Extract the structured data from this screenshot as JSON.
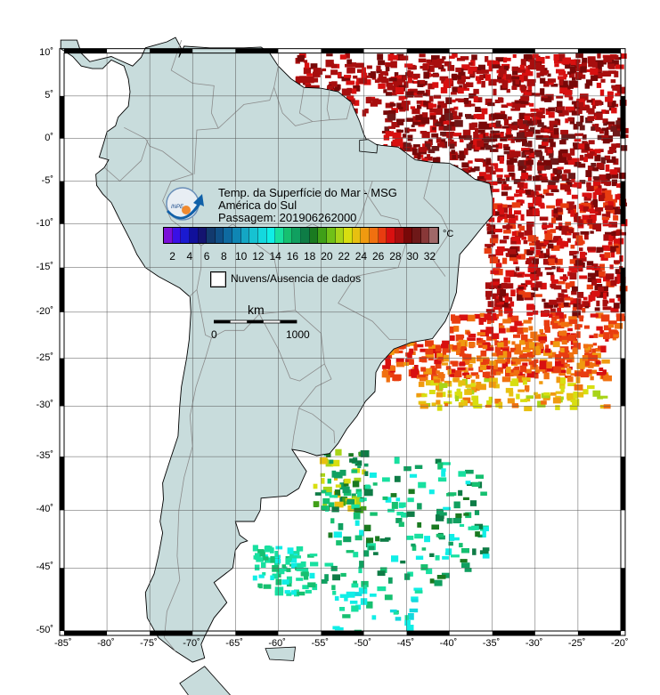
{
  "title": {
    "line1": "Temp. da Superfície do Mar - MSG",
    "line2": "América do Sul",
    "line3": "Passagem: 201906262000"
  },
  "logo_text": "INPE",
  "colorbar": {
    "unit": "°C",
    "ticks": [
      "2",
      "4",
      "6",
      "8",
      "10",
      "12",
      "14",
      "16",
      "18",
      "20",
      "22",
      "24",
      "26",
      "28",
      "30",
      "32"
    ],
    "range": [
      1,
      33
    ],
    "colors": [
      "#7a10d8",
      "#3a10e6",
      "#1a1ad0",
      "#10109a",
      "#141470",
      "#123a6e",
      "#0f4f86",
      "#0e6aa0",
      "#0f86b4",
      "#14a6c4",
      "#16c2d2",
      "#14d8de",
      "#10eee6",
      "#18e0a0",
      "#16c070",
      "#10a060",
      "#0e7c46",
      "#1a7a20",
      "#40a018",
      "#70c018",
      "#a8d418",
      "#d8de10",
      "#e8c010",
      "#f09a10",
      "#f07010",
      "#e83c10",
      "#d81010",
      "#a80e0e",
      "#780808",
      "#6e1818",
      "#883838",
      "#a06868",
      "#c0a0a0"
    ]
  },
  "legend": {
    "no_data_label": "Nuvens/Ausencia de dados"
  },
  "scalebar": {
    "unit": "km",
    "start": "0",
    "end": "1000"
  },
  "axes": {
    "lon_labels": [
      "-85˚",
      "-80˚",
      "-75˚",
      "-70˚",
      "-65˚",
      "-60˚",
      "-55˚",
      "-50˚",
      "-45˚",
      "-40˚",
      "-35˚",
      "-30˚",
      "-25˚",
      "-20˚"
    ],
    "lat_labels": [
      "10˚",
      "5˚",
      "0˚",
      "-5˚",
      "-10˚",
      "-15˚",
      "-20˚",
      "-25˚",
      "-30˚",
      "-35˚",
      "-40˚",
      "-45˚",
      "-50˚"
    ],
    "lon_range": [
      -85,
      -20
    ],
    "lat_range": [
      -50,
      10
    ]
  },
  "colors": {
    "land": "#c8dcdc",
    "ocean": "#ffffff",
    "border": "#8c8c8c",
    "grid": "#555555"
  }
}
